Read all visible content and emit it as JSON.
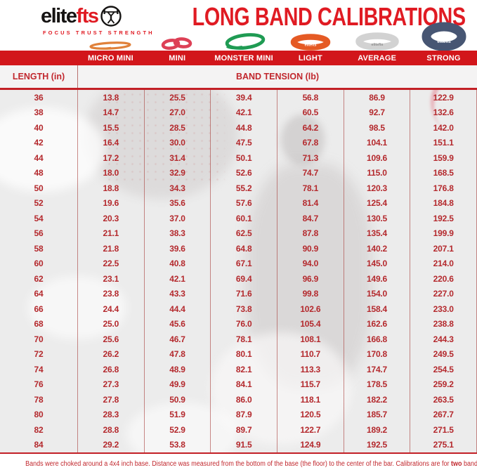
{
  "logo": {
    "brand_black": "elite",
    "brand_red": "fts",
    "tagline": "FOCUS TRUST STRENGTH"
  },
  "title": "LONG BAND CALIBRATIONS",
  "bands": [
    {
      "name": "MICRO MINI",
      "color": "#e0813a",
      "label": ""
    },
    {
      "name": "MINI",
      "color": "#dd4056",
      "label": ""
    },
    {
      "name": "MONSTER MINI",
      "color": "#1f9b53",
      "label": ""
    },
    {
      "name": "LIGHT",
      "color": "#e55a24",
      "label": "elitefts"
    },
    {
      "name": "AVERAGE",
      "color": "#d2d2d2",
      "label": "elitefts"
    },
    {
      "name": "STRONG",
      "color": "#475673",
      "label": "elitefts"
    }
  ],
  "table": {
    "length_header": "LENGTH (in)",
    "tension_header": "BAND TENSION (lb)",
    "columns": [
      "MICRO MINI",
      "MINI",
      "MONSTER MINI",
      "LIGHT",
      "AVERAGE",
      "STRONG"
    ],
    "rows": [
      {
        "length": "36",
        "values": [
          "13.8",
          "25.5",
          "39.4",
          "56.8",
          "86.9",
          "122.9"
        ]
      },
      {
        "length": "38",
        "values": [
          "14.7",
          "27.0",
          "42.1",
          "60.5",
          "92.7",
          "132.6"
        ]
      },
      {
        "length": "40",
        "values": [
          "15.5",
          "28.5",
          "44.8",
          "64.2",
          "98.5",
          "142.0"
        ]
      },
      {
        "length": "42",
        "values": [
          "16.4",
          "30.0",
          "47.5",
          "67.8",
          "104.1",
          "151.1"
        ]
      },
      {
        "length": "44",
        "values": [
          "17.2",
          "31.4",
          "50.1",
          "71.3",
          "109.6",
          "159.9"
        ]
      },
      {
        "length": "48",
        "values": [
          "18.0",
          "32.9",
          "52.6",
          "74.7",
          "115.0",
          "168.5"
        ]
      },
      {
        "length": "50",
        "values": [
          "18.8",
          "34.3",
          "55.2",
          "78.1",
          "120.3",
          "176.8"
        ]
      },
      {
        "length": "52",
        "values": [
          "19.6",
          "35.6",
          "57.6",
          "81.4",
          "125.4",
          "184.8"
        ]
      },
      {
        "length": "54",
        "values": [
          "20.3",
          "37.0",
          "60.1",
          "84.7",
          "130.5",
          "192.5"
        ]
      },
      {
        "length": "56",
        "values": [
          "21.1",
          "38.3",
          "62.5",
          "87.8",
          "135.4",
          "199.9"
        ]
      },
      {
        "length": "58",
        "values": [
          "21.8",
          "39.6",
          "64.8",
          "90.9",
          "140.2",
          "207.1"
        ]
      },
      {
        "length": "60",
        "values": [
          "22.5",
          "40.8",
          "67.1",
          "94.0",
          "145.0",
          "214.0"
        ]
      },
      {
        "length": "62",
        "values": [
          "23.1",
          "42.1",
          "69.4",
          "96.9",
          "149.6",
          "220.6"
        ]
      },
      {
        "length": "64",
        "values": [
          "23.8",
          "43.3",
          "71.6",
          "99.8",
          "154.0",
          "227.0"
        ]
      },
      {
        "length": "66",
        "values": [
          "24.4",
          "44.4",
          "73.8",
          "102.6",
          "158.4",
          "233.0"
        ]
      },
      {
        "length": "68",
        "values": [
          "25.0",
          "45.6",
          "76.0",
          "105.4",
          "162.6",
          "238.8"
        ]
      },
      {
        "length": "70",
        "values": [
          "25.6",
          "46.7",
          "78.1",
          "108.1",
          "166.8",
          "244.3"
        ]
      },
      {
        "length": "72",
        "values": [
          "26.2",
          "47.8",
          "80.1",
          "110.7",
          "170.8",
          "249.5"
        ]
      },
      {
        "length": "74",
        "values": [
          "26.8",
          "48.9",
          "82.1",
          "113.3",
          "174.7",
          "254.5"
        ]
      },
      {
        "length": "76",
        "values": [
          "27.3",
          "49.9",
          "84.1",
          "115.7",
          "178.5",
          "259.2"
        ]
      },
      {
        "length": "78",
        "values": [
          "27.8",
          "50.9",
          "86.0",
          "118.1",
          "182.2",
          "263.5"
        ]
      },
      {
        "length": "80",
        "values": [
          "28.3",
          "51.9",
          "87.9",
          "120.5",
          "185.7",
          "267.7"
        ]
      },
      {
        "length": "82",
        "values": [
          "28.8",
          "52.9",
          "89.7",
          "122.7",
          "189.2",
          "271.5"
        ]
      },
      {
        "length": "84",
        "values": [
          "29.2",
          "53.8",
          "91.5",
          "124.9",
          "192.5",
          "275.1"
        ]
      }
    ]
  },
  "footnote": {
    "before": "Bands were choked around a 4x4 inch base. Distance was measured from the bottom of the base (the floor) to the center of the bar. Calibrations are for ",
    "bold": "two",
    "after": " bands."
  },
  "colors": {
    "bar_red": "#d2161b",
    "title_red": "#e01b23",
    "data_red": "#b4292d",
    "footnote_red": "#c1272d"
  }
}
